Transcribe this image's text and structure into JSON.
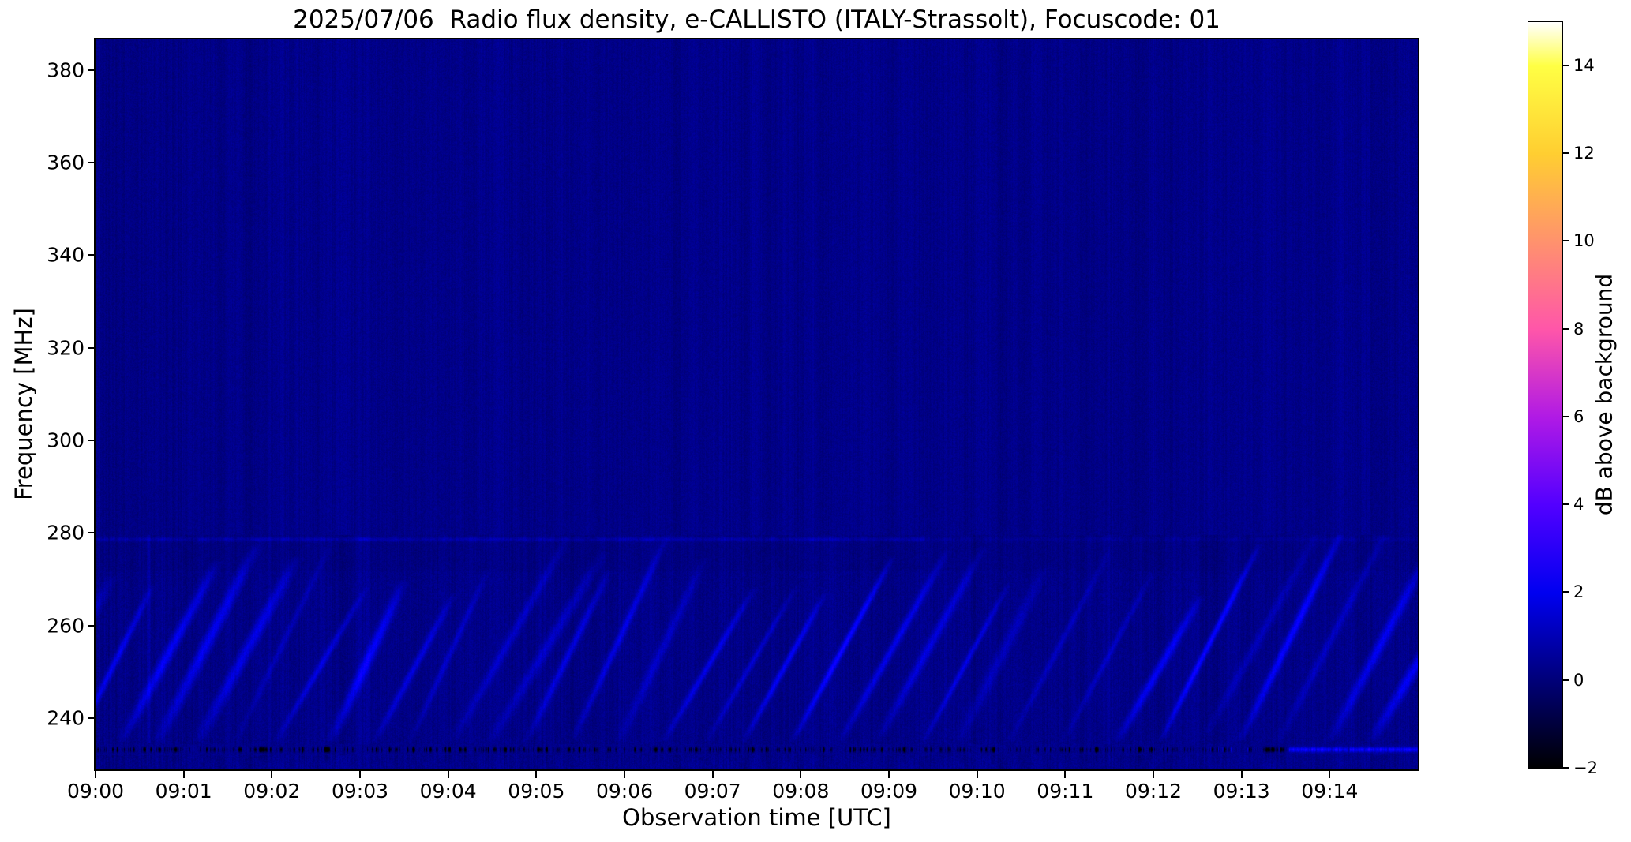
{
  "figure": {
    "title": "2025/07/06  Radio flux density, e-CALLISTO (ITALY-Strassolt), Focuscode: 01",
    "x_axis": {
      "label": "Observation time [UTC]",
      "tick_labels": [
        "09:00",
        "09:01",
        "09:02",
        "09:03",
        "09:04",
        "09:05",
        "09:06",
        "09:07",
        "09:08",
        "09:09",
        "09:10",
        "09:11",
        "09:12",
        "09:13",
        "09:14"
      ]
    },
    "y_axis": {
      "label": "Frequency [MHz]",
      "tick_values": [
        380,
        360,
        340,
        320,
        300,
        280,
        260,
        240
      ]
    },
    "colorbar": {
      "label": "dB above background",
      "min": -2,
      "max": 15,
      "tick_values": [
        14,
        12,
        10,
        8,
        6,
        4,
        2,
        0,
        -2
      ],
      "tick_labels": [
        "14",
        "12",
        "10",
        "8",
        "6",
        "4",
        "2",
        "0",
        "−2"
      ],
      "gradient_stops": [
        {
          "value": 15,
          "color": "#ffffff"
        },
        {
          "value": 14,
          "color": "#ffff44"
        },
        {
          "value": 12,
          "color": "#ffce31"
        },
        {
          "value": 10,
          "color": "#ff926d"
        },
        {
          "value": 8,
          "color": "#ff56a9"
        },
        {
          "value": 6,
          "color": "#b01ae5"
        },
        {
          "value": 4,
          "color": "#5200ff"
        },
        {
          "value": 2,
          "color": "#0000f0"
        },
        {
          "value": 0,
          "color": "#000078"
        },
        {
          "value": -2,
          "color": "#000000"
        }
      ]
    }
  },
  "chart_data": {
    "type": "heatmap",
    "subtype": "solar-radio-spectrogram",
    "title": "2025/07/06  Radio flux density, e-CALLISTO (ITALY-Strassolt), Focuscode: 01",
    "xlabel": "Observation time [UTC]",
    "ylabel": "Frequency [MHz]",
    "x_range_utc": [
      "09:00",
      "09:15"
    ],
    "x_tick_labels": [
      "09:00",
      "09:01",
      "09:02",
      "09:03",
      "09:04",
      "09:05",
      "09:06",
      "09:07",
      "09:08",
      "09:09",
      "09:10",
      "09:11",
      "09:12",
      "09:13",
      "09:14"
    ],
    "y_range_mhz": [
      229,
      387
    ],
    "y_tick_values_mhz": [
      380,
      360,
      340,
      320,
      300,
      280,
      260,
      240
    ],
    "color_scale": {
      "label": "dB above background",
      "min_db": -2,
      "max_db": 15,
      "tick_values_db": [
        14,
        12,
        10,
        8,
        6,
        4,
        2,
        0,
        -2
      ],
      "colormap": "gnuplot2-like: black > navy > blue > violet > magenta > pink > orange > yellow > white"
    },
    "background_level_db": 0,
    "grid": false,
    "legend": false,
    "features": [
      {
        "name": "quiet-background",
        "freq_range_mhz": [
          280,
          387
        ],
        "level_db": 0,
        "description": "uniform dark-navy background near 0 dB with faint vertical noise striping"
      },
      {
        "name": "drifting-diagonal-streaks",
        "freq_range_mhz": [
          238,
          276
        ],
        "level_db": 2,
        "description": "repeating bright-blue diagonal streaks drifting upward in frequency, recurring roughly every 45-60 s across the full 15 min"
      },
      {
        "name": "enhanced-narrow-channel",
        "freq_mhz": 279,
        "level_db": 1,
        "description": "faint brighter horizontal line across most of the record, weaker after about 09:09"
      },
      {
        "name": "rfi-speckle-band",
        "freq_mhz": 233.5,
        "level_db": -2,
        "description": "dark speckled interference band dipping to -2 dB; becomes a bright ~2.5 dB blue line after about 09:13:45"
      },
      {
        "name": "bright-vertical-burst",
        "time_utc": "09:00:36",
        "freq_range_mhz": [
          240,
          275
        ],
        "level_db": 2,
        "description": "short broadband vertical enhancement near the start of the record"
      }
    ]
  }
}
